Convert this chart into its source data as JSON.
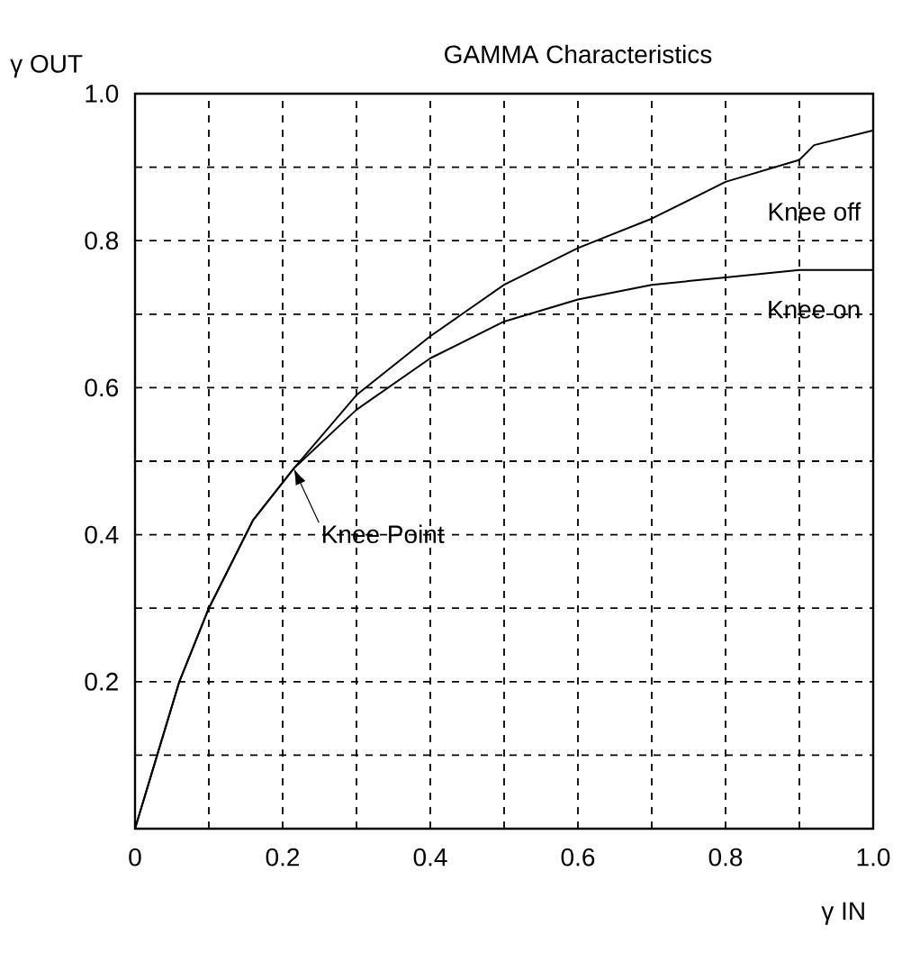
{
  "chart_data": {
    "type": "line",
    "title": "GAMMA Characteristics",
    "xlabel": "γ IN",
    "ylabel": "γ OUT",
    "xlim": [
      0,
      1.0
    ],
    "ylim": [
      0,
      1.0
    ],
    "xticks": [
      {
        "value": 0,
        "label": "0"
      },
      {
        "value": 0.1,
        "label": null
      },
      {
        "value": 0.2,
        "label": "0.2"
      },
      {
        "value": 0.3,
        "label": null
      },
      {
        "value": 0.4,
        "label": "0.4"
      },
      {
        "value": 0.5,
        "label": null
      },
      {
        "value": 0.6,
        "label": "0.6"
      },
      {
        "value": 0.7,
        "label": null
      },
      {
        "value": 0.8,
        "label": "0.8"
      },
      {
        "value": 0.9,
        "label": null
      },
      {
        "value": 1.0,
        "label": "1.0"
      }
    ],
    "yticks": [
      {
        "value": 0,
        "label": null
      },
      {
        "value": 0.1,
        "label": null
      },
      {
        "value": 0.2,
        "label": "0.2"
      },
      {
        "value": 0.3,
        "label": null
      },
      {
        "value": 0.4,
        "label": "0.4"
      },
      {
        "value": 0.5,
        "label": null
      },
      {
        "value": 0.6,
        "label": "0.6"
      },
      {
        "value": 0.7,
        "label": null
      },
      {
        "value": 0.8,
        "label": "0.8"
      },
      {
        "value": 0.9,
        "label": null
      },
      {
        "value": 1.0,
        "label": "1.0"
      }
    ],
    "grid": true,
    "line_style": "solid",
    "series": [
      {
        "name": "Knee off",
        "color": "#000000",
        "x": [
          0,
          0.03,
          0.06,
          0.1,
          0.16,
          0.215,
          0.3,
          0.4,
          0.5,
          0.6,
          0.7,
          0.8,
          0.9,
          0.92,
          1.0
        ],
        "values": [
          0,
          0.1,
          0.2,
          0.3,
          0.42,
          0.49,
          0.59,
          0.67,
          0.74,
          0.79,
          0.83,
          0.88,
          0.91,
          0.93,
          0.95
        ]
      },
      {
        "name": "Knee on",
        "color": "#000000",
        "x": [
          0,
          0.03,
          0.06,
          0.1,
          0.16,
          0.215,
          0.3,
          0.4,
          0.5,
          0.6,
          0.7,
          0.8,
          0.9,
          1.0
        ],
        "values": [
          0,
          0.1,
          0.2,
          0.3,
          0.42,
          0.49,
          0.57,
          0.64,
          0.69,
          0.72,
          0.74,
          0.75,
          0.76,
          0.76
        ]
      }
    ],
    "annotations": [
      {
        "text": "Knee Point",
        "x": 0.215,
        "y": 0.49
      }
    ]
  }
}
